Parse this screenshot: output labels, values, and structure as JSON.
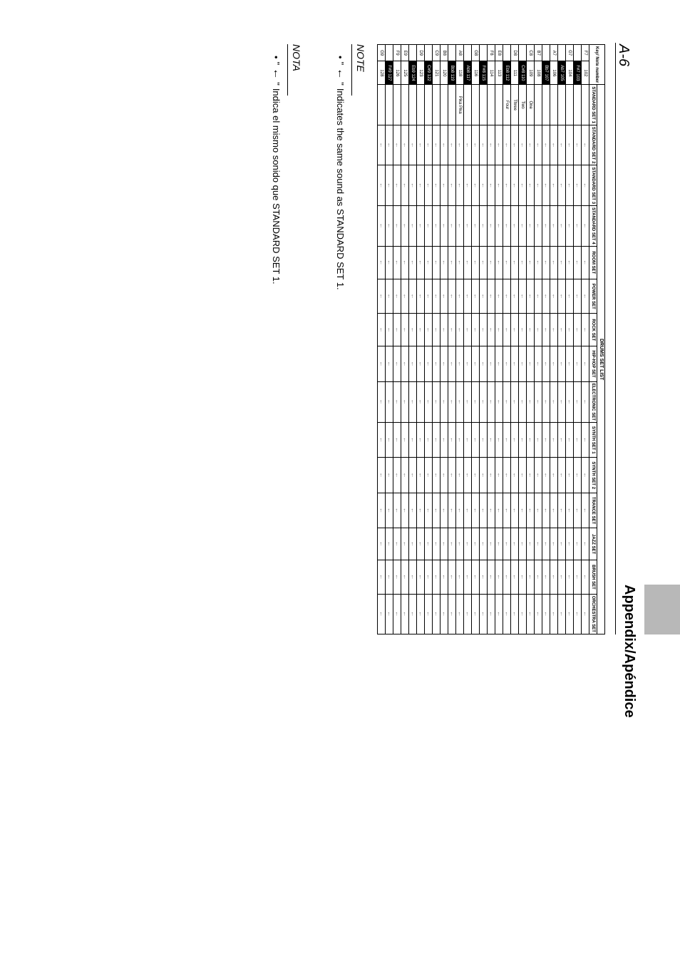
{
  "header": {
    "title": "Appendix/Apéndice",
    "page_number": "A-6"
  },
  "table": {
    "title": "DRUMS SET LIST",
    "key_label": "Key/\nNote number",
    "columns": [
      "STANDARD SET 1",
      "STANDARD SET 2",
      "STANDARD SET 3",
      "STANDARD SET 4",
      "ROOM SET",
      "POWER SET",
      "ROCK SET",
      "HIP-HOP SET",
      "ELECTRONIC SET",
      "SYNTH SET 1",
      "SYNTH SET 2",
      "TRANCE SET",
      "JAZZ SET",
      "BRUSH SET",
      "ORCHESTRA SET"
    ],
    "rows": [
      {
        "key": "F7",
        "note": "102",
        "black": false,
        "std1": ""
      },
      {
        "key": "",
        "note": "F#7 103",
        "black": true,
        "std1": ""
      },
      {
        "key": "G7",
        "note": "104",
        "black": false,
        "std1": ""
      },
      {
        "key": "",
        "note": "Ab7 105",
        "black": true,
        "std1": ""
      },
      {
        "key": "A7",
        "note": "106",
        "black": false,
        "std1": ""
      },
      {
        "key": "",
        "note": "Bb7 107",
        "black": true,
        "std1": ""
      },
      {
        "key": "B7",
        "note": "108",
        "black": false,
        "std1": ""
      },
      {
        "key": "C8",
        "note": "109",
        "black": false,
        "std1": "One"
      },
      {
        "key": "",
        "note": "C#8 110",
        "black": true,
        "std1": "Two"
      },
      {
        "key": "D8",
        "note": "111",
        "black": false,
        "std1": "Three"
      },
      {
        "key": "",
        "note": "Eb8 112",
        "black": true,
        "std1": "Four"
      },
      {
        "key": "E8",
        "note": "113",
        "black": false,
        "std1": ""
      },
      {
        "key": "F8",
        "note": "114",
        "black": false,
        "std1": ""
      },
      {
        "key": "",
        "note": "F#8 115",
        "black": true,
        "std1": ""
      },
      {
        "key": "G8",
        "note": "116",
        "black": false,
        "std1": ""
      },
      {
        "key": "",
        "note": "Ab8 117",
        "black": true,
        "std1": ""
      },
      {
        "key": "A8",
        "note": "118",
        "black": false,
        "std1": "Pika Pika"
      },
      {
        "key": "",
        "note": "Bb8 119",
        "black": true,
        "std1": ""
      },
      {
        "key": "B8",
        "note": "120",
        "black": false,
        "std1": ""
      },
      {
        "key": "C9",
        "note": "121",
        "black": false,
        "std1": ""
      },
      {
        "key": "",
        "note": "C#9 122",
        "black": true,
        "std1": ""
      },
      {
        "key": "D9",
        "note": "123",
        "black": false,
        "std1": ""
      },
      {
        "key": "",
        "note": "Eb9 124",
        "black": true,
        "std1": ""
      },
      {
        "key": "E9",
        "note": "125",
        "black": false,
        "std1": ""
      },
      {
        "key": "F9",
        "note": "126",
        "black": false,
        "std1": ""
      },
      {
        "key": "",
        "note": "F#9 127",
        "black": true,
        "std1": ""
      },
      {
        "key": "G9",
        "note": "128",
        "black": false,
        "std1": ""
      }
    ],
    "arrow": "←"
  },
  "notes": {
    "note1": {
      "heading": "NOTE",
      "bullet": "•",
      "quote_open": "\" ",
      "arrow": "←",
      "quote_close": " \"",
      "text": "Indicates the same sound as STANDARD SET 1."
    },
    "note2": {
      "heading": "NOTA",
      "bullet": "•",
      "quote_open": "\" ",
      "arrow": "←",
      "quote_close": " \"",
      "text": "Indica el mismo sonido que STANDARD SET 1."
    }
  }
}
